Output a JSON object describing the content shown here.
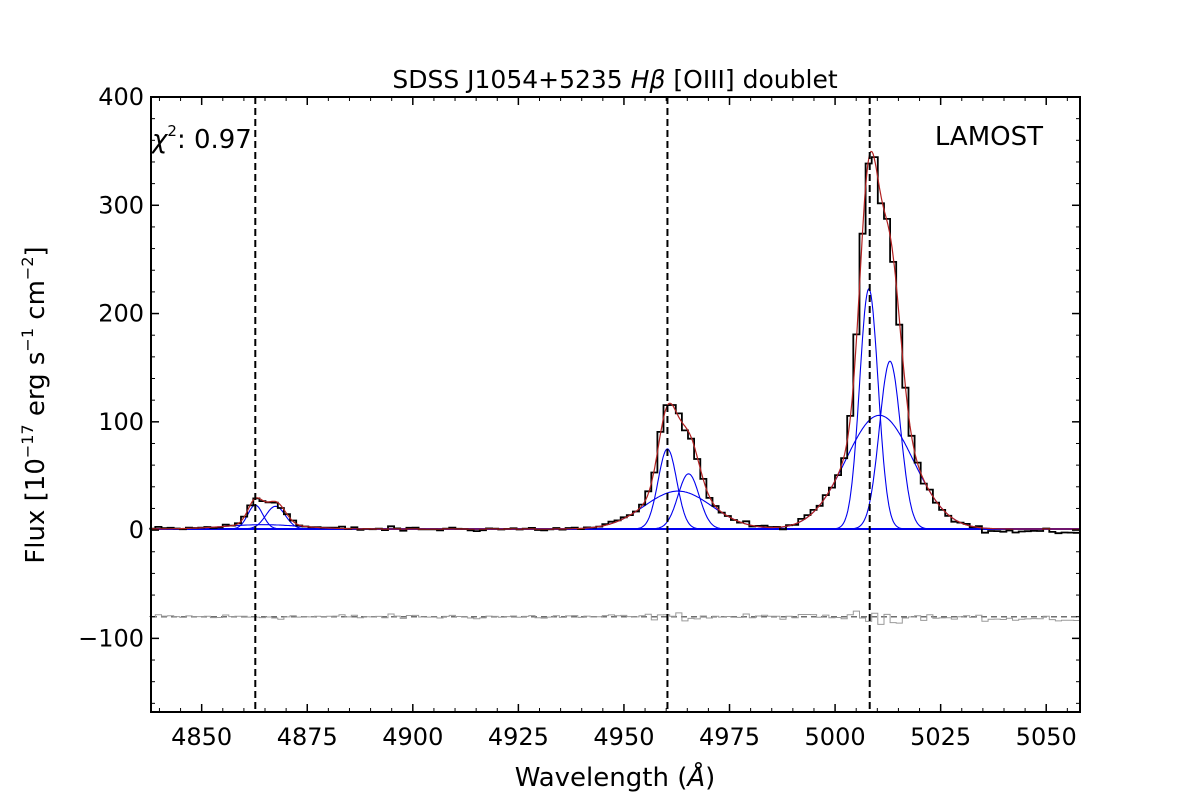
{
  "chart_data": {
    "type": "line",
    "title_parts": [
      "SDSS J1054+5235 ",
      "H",
      "β",
      " [OIII] doublet"
    ],
    "xlabel_parts": [
      "Wavelength (",
      "Å",
      ")"
    ],
    "ylabel_parts": [
      "Flux [10",
      "−17",
      " erg s",
      "−1",
      " cm",
      "−2",
      "]"
    ],
    "xlim": [
      4838,
      5058
    ],
    "ylim": [
      -168,
      400
    ],
    "xticks": [
      4850,
      4875,
      4900,
      4925,
      4950,
      4975,
      5000,
      5025,
      5050
    ],
    "xtick_labels": [
      "4850",
      "4875",
      "4900",
      "4925",
      "4950",
      "4975",
      "5000",
      "5025",
      "5050"
    ],
    "yticks": [
      -100,
      0,
      100,
      200,
      300,
      400
    ],
    "ytick_labels": [
      "−100",
      "0",
      "100",
      "200",
      "300",
      "400"
    ],
    "annotations": {
      "chi2_symbol": "χ",
      "chi2_power": "2",
      "chi2_value": ": 0.97",
      "instrument": "LAMOST"
    },
    "vlines": [
      4862.7,
      4960.3,
      5008.2
    ],
    "residual_offset": -80,
    "continuum": 1,
    "components": [
      {
        "name": "Hβ narrow",
        "center": 4862.7,
        "amp": 22,
        "sigma": 1.8
      },
      {
        "name": "Hβ blue",
        "center": 4867.5,
        "amp": 21,
        "sigma": 2.3
      },
      {
        "name": "Hβ broad",
        "center": 4864.5,
        "amp": 4,
        "sigma": 9
      },
      {
        "name": "[OIII]4959 narrow",
        "center": 4960.3,
        "amp": 74,
        "sigma": 2.2
      },
      {
        "name": "[OIII]4959 red",
        "center": 4965.3,
        "amp": 51,
        "sigma": 2.5
      },
      {
        "name": "[OIII]4959 wing",
        "center": 4962.8,
        "amp": 35,
        "sigma": 8.0
      },
      {
        "name": "[OIII]5007 narrow",
        "center": 5008.0,
        "amp": 222,
        "sigma": 2.2
      },
      {
        "name": "[OIII]5007 red",
        "center": 5013.0,
        "amp": 155,
        "sigma": 2.5
      },
      {
        "name": "[OIII]5007 wing",
        "center": 5010.5,
        "amp": 105,
        "sigma": 8.0
      }
    ],
    "colors": {
      "data": "#000000",
      "model": "#b22222",
      "components": "#0000ee",
      "residual": "#9a9a9a",
      "residual_zero": "#6f6f6f",
      "vlines": "#000000"
    }
  }
}
